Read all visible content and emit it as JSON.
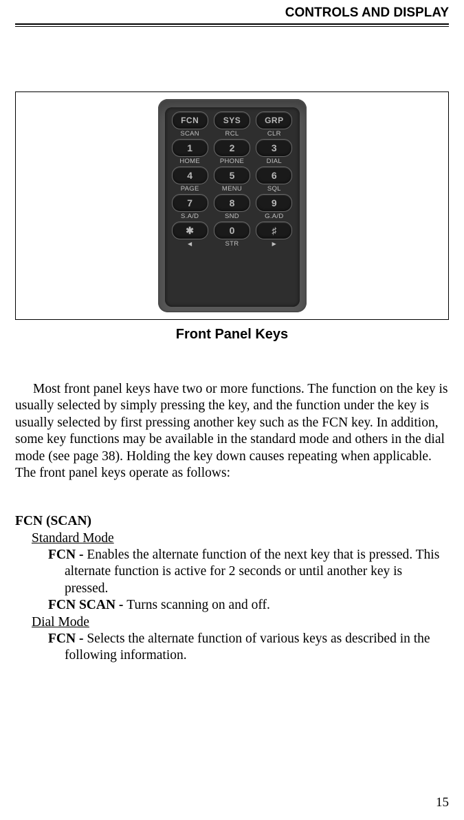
{
  "header": {
    "title": "CONTROLS AND DISPLAY"
  },
  "figure": {
    "caption": "Front Panel Keys",
    "keypad": {
      "top_row": [
        "FCN",
        "SYS",
        "GRP"
      ],
      "labels1": [
        "SCAN",
        "RCL",
        "CLR"
      ],
      "row2": [
        "1",
        "2",
        "3"
      ],
      "labels2": [
        "HOME",
        "PHONE",
        "DIAL"
      ],
      "row3": [
        "4",
        "5",
        "6"
      ],
      "labels3": [
        "PAGE",
        "MENU",
        "SQL"
      ],
      "row4": [
        "7",
        "8",
        "9"
      ],
      "labels4": [
        "S.A/D",
        "SND",
        "G.A/D"
      ],
      "row5": [
        "✱",
        "0",
        "♯"
      ],
      "labels5": [
        "◀",
        "STR",
        "▶"
      ]
    }
  },
  "intro_paragraph": "Most front panel keys have two or more functions. The function on the key is usually selected by simply pressing the key, and the function under the key is usually selected by first pressing another key such as the FCN key. In addition, some key functions may be available in the standard mode and others in the dial mode (see page 38). Holding the key down causes repeating when applicable. The front panel keys operate as follows:",
  "fcn": {
    "title": "FCN (SCAN)",
    "standard": {
      "heading": "Standard Mode",
      "fcn_label": "FCN - ",
      "fcn_text": "Enables the alternate function of the next key that is pressed. This alternate function is active for 2 seconds or until another key is pressed.",
      "fcnscan_label": "FCN SCAN - ",
      "fcnscan_text": "Turns scanning on and off."
    },
    "dial": {
      "heading": "Dial Mode",
      "fcn_label": "FCN - ",
      "fcn_text": "Selects the alternate function of various keys as described in the following information."
    }
  },
  "page_number": "15"
}
